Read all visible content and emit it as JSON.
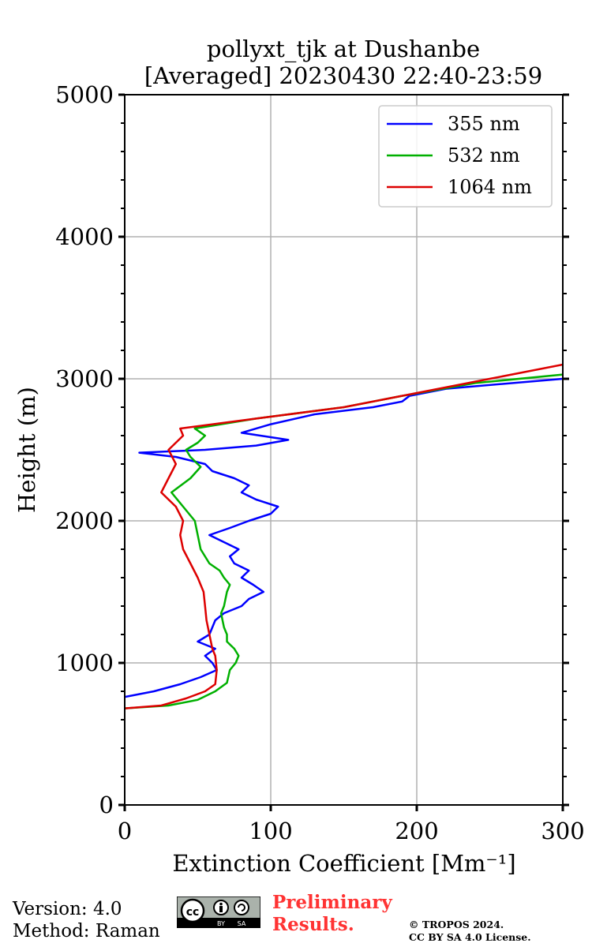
{
  "chart_data": {
    "type": "line",
    "title": "pollyxt_tjk at Dushanbe",
    "subtitle": "[Averaged] 20230430 22:40-23:59",
    "xlabel": "Extinction Coefficient [Mm⁻¹]",
    "ylabel": "Height (m)",
    "xlim": [
      0,
      300
    ],
    "ylim": [
      0,
      5000
    ],
    "xticks": [
      0,
      100,
      200,
      300
    ],
    "yticks": [
      0,
      1000,
      2000,
      3000,
      4000,
      5000
    ],
    "grid": true,
    "legend_position": "top-right",
    "series": [
      {
        "name": "355 nm",
        "color": "#0000ff",
        "points": [
          [
            0,
            760
          ],
          [
            20,
            800
          ],
          [
            38,
            850
          ],
          [
            52,
            900
          ],
          [
            63,
            950
          ],
          [
            60,
            1000
          ],
          [
            55,
            1050
          ],
          [
            62,
            1100
          ],
          [
            50,
            1150
          ],
          [
            58,
            1200
          ],
          [
            60,
            1250
          ],
          [
            62,
            1300
          ],
          [
            68,
            1350
          ],
          [
            80,
            1400
          ],
          [
            85,
            1450
          ],
          [
            95,
            1500
          ],
          [
            88,
            1550
          ],
          [
            80,
            1600
          ],
          [
            85,
            1650
          ],
          [
            75,
            1700
          ],
          [
            72,
            1750
          ],
          [
            78,
            1800
          ],
          [
            68,
            1850
          ],
          [
            58,
            1900
          ],
          [
            72,
            1950
          ],
          [
            85,
            2000
          ],
          [
            100,
            2050
          ],
          [
            105,
            2100
          ],
          [
            90,
            2150
          ],
          [
            80,
            2200
          ],
          [
            85,
            2250
          ],
          [
            75,
            2300
          ],
          [
            60,
            2350
          ],
          [
            55,
            2400
          ],
          [
            35,
            2450
          ],
          [
            10,
            2480
          ],
          [
            55,
            2500
          ],
          [
            90,
            2530
          ],
          [
            112,
            2570
          ],
          [
            80,
            2620
          ],
          [
            100,
            2680
          ],
          [
            130,
            2750
          ],
          [
            170,
            2800
          ],
          [
            190,
            2840
          ],
          [
            195,
            2880
          ],
          [
            220,
            2930
          ],
          [
            300,
            3000
          ]
        ]
      },
      {
        "name": "532 nm",
        "color": "#00b000",
        "points": [
          [
            0,
            680
          ],
          [
            30,
            700
          ],
          [
            50,
            740
          ],
          [
            62,
            800
          ],
          [
            70,
            860
          ],
          [
            72,
            950
          ],
          [
            76,
            1000
          ],
          [
            78,
            1050
          ],
          [
            75,
            1100
          ],
          [
            70,
            1150
          ],
          [
            70,
            1200
          ],
          [
            68,
            1250
          ],
          [
            67,
            1300
          ],
          [
            66,
            1350
          ],
          [
            68,
            1400
          ],
          [
            70,
            1500
          ],
          [
            72,
            1550
          ],
          [
            68,
            1600
          ],
          [
            65,
            1650
          ],
          [
            58,
            1700
          ],
          [
            52,
            1800
          ],
          [
            50,
            1900
          ],
          [
            48,
            2000
          ],
          [
            40,
            2100
          ],
          [
            32,
            2200
          ],
          [
            45,
            2300
          ],
          [
            52,
            2380
          ],
          [
            45,
            2450
          ],
          [
            42,
            2500
          ],
          [
            50,
            2550
          ],
          [
            55,
            2600
          ],
          [
            48,
            2650
          ],
          [
            90,
            2720
          ],
          [
            150,
            2800
          ],
          [
            190,
            2880
          ],
          [
            240,
            2970
          ],
          [
            300,
            3030
          ]
        ]
      },
      {
        "name": "1064 nm",
        "color": "#dd0000",
        "points": [
          [
            0,
            680
          ],
          [
            25,
            700
          ],
          [
            42,
            750
          ],
          [
            55,
            800
          ],
          [
            62,
            850
          ],
          [
            63,
            950
          ],
          [
            62,
            1050
          ],
          [
            60,
            1100
          ],
          [
            58,
            1200
          ],
          [
            56,
            1300
          ],
          [
            55,
            1400
          ],
          [
            54,
            1500
          ],
          [
            50,
            1600
          ],
          [
            45,
            1700
          ],
          [
            40,
            1800
          ],
          [
            38,
            1900
          ],
          [
            40,
            2000
          ],
          [
            35,
            2100
          ],
          [
            25,
            2200
          ],
          [
            30,
            2300
          ],
          [
            35,
            2400
          ],
          [
            30,
            2500
          ],
          [
            40,
            2600
          ],
          [
            38,
            2650
          ],
          [
            90,
            2720
          ],
          [
            150,
            2800
          ],
          [
            200,
            2900
          ],
          [
            250,
            3000
          ],
          [
            300,
            3100
          ]
        ]
      }
    ]
  },
  "footer": {
    "version": "Version: 4.0",
    "method": "Method: Raman",
    "preliminary_line1": "Preliminary",
    "preliminary_line2": "Results.",
    "copyright_line1": "© TROPOS 2024.",
    "copyright_line2": "CC BY SA 4.0 License."
  },
  "cc_badge": {
    "cc": "cc",
    "by": "BY",
    "sa": "SA"
  }
}
